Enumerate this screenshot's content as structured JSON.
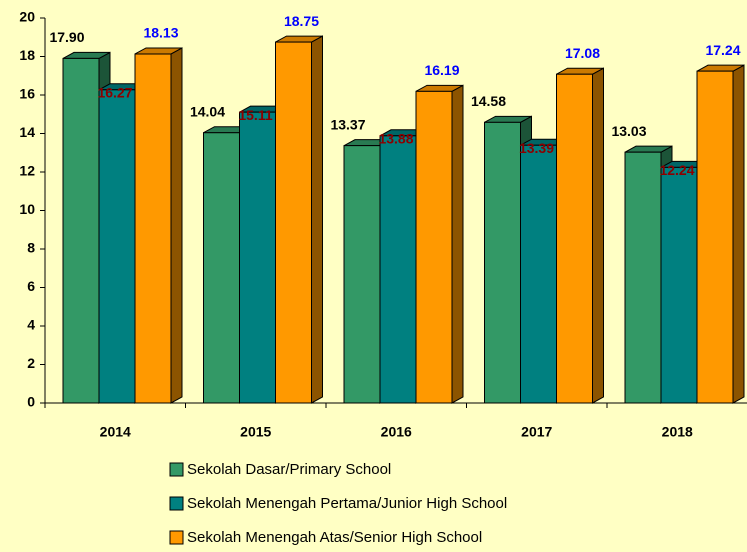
{
  "chart_data": {
    "type": "bar3d",
    "categories": [
      "2014",
      "2015",
      "2016",
      "2017",
      "2018"
    ],
    "series": [
      {
        "name": "Sekolah Dasar/Primary School",
        "color": "#339966",
        "label_color": "#000000",
        "values": [
          17.9,
          14.04,
          13.37,
          14.58,
          13.03
        ],
        "value_labels": [
          "17.90",
          "14.04",
          "13.37",
          "14.58",
          "13.03"
        ]
      },
      {
        "name": "Sekolah Menengah Pertama/Junior High School",
        "color": "#008080",
        "label_color": "#8b0000",
        "values": [
          16.27,
          15.11,
          13.88,
          13.39,
          12.24
        ],
        "value_labels": [
          "16.27",
          "15.11",
          "13.88",
          "13.39",
          "12.24"
        ]
      },
      {
        "name": "Sekolah Menengah Atas/Senior High School",
        "color": "#ff9900",
        "label_color": "#0000ff",
        "values": [
          18.13,
          18.75,
          16.19,
          17.08,
          17.24
        ],
        "value_labels": [
          "18.13",
          "18.75",
          "16.19",
          "17.08",
          "17.24"
        ]
      }
    ],
    "ylim": [
      0,
      20
    ],
    "yticks": [
      0,
      2,
      4,
      6,
      8,
      10,
      12,
      14,
      16,
      18,
      20
    ],
    "grid": false
  }
}
